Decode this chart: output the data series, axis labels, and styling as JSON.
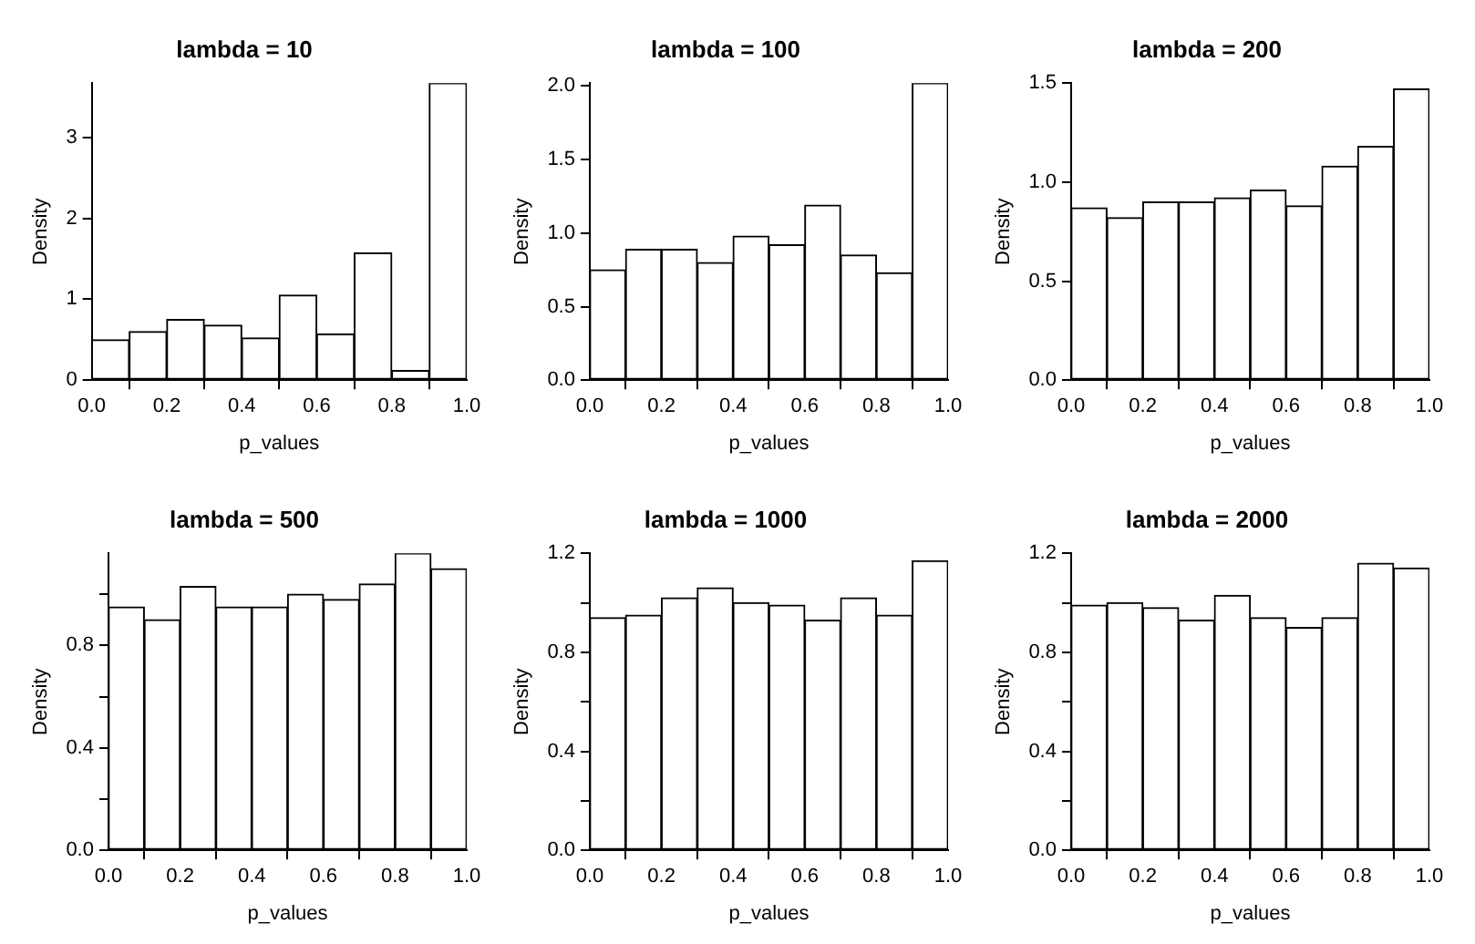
{
  "chart_data": [
    {
      "type": "histogram",
      "title": "lambda = 10",
      "xlabel": "p_values",
      "ylabel": "Density",
      "bins": [
        0,
        0.1,
        0.2,
        0.3,
        0.4,
        0.5,
        0.6,
        0.7,
        0.8,
        0.9,
        1.0
      ],
      "values": [
        0.5,
        0.6,
        0.75,
        0.68,
        0.52,
        1.05,
        0.57,
        1.57,
        0.12,
        3.67
      ],
      "color": "#ffffff",
      "xlim": [
        0,
        1
      ],
      "xticks": [
        {
          "value": 0,
          "label": "0.0"
        },
        {
          "value": 0.2,
          "label": "0.2"
        },
        {
          "value": 0.4,
          "label": "0.4"
        },
        {
          "value": 0.6,
          "label": "0.6"
        },
        {
          "value": 0.8,
          "label": "0.8"
        },
        {
          "value": 1,
          "label": "1.0"
        }
      ],
      "ylim": [
        0,
        3.67
      ],
      "yticks": [
        0,
        1,
        2,
        3
      ],
      "grid": false
    },
    {
      "type": "histogram",
      "title": "lambda = 100",
      "xlabel": "p_values",
      "ylabel": "Density",
      "bins": [
        0,
        0.1,
        0.2,
        0.3,
        0.4,
        0.5,
        0.6,
        0.7,
        0.8,
        0.9,
        1.0
      ],
      "values": [
        0.75,
        0.89,
        0.89,
        0.8,
        0.98,
        0.92,
        1.19,
        0.85,
        0.73,
        2.02
      ],
      "color": "#ffffff",
      "xlim": [
        0,
        1
      ],
      "xticks": [
        {
          "value": 0,
          "label": "0.0"
        },
        {
          "value": 0.2,
          "label": "0.2"
        },
        {
          "value": 0.4,
          "label": "0.4"
        },
        {
          "value": 0.6,
          "label": "0.6"
        },
        {
          "value": 0.8,
          "label": "0.8"
        },
        {
          "value": 1,
          "label": "1.0"
        }
      ],
      "ylim": [
        0,
        2.02
      ],
      "yticks": [
        {
          "value": 0,
          "label": "0.0"
        },
        {
          "value": 0.5,
          "label": "0.5"
        },
        {
          "value": 1,
          "label": "1.0"
        },
        {
          "value": 1.5,
          "label": "1.5"
        },
        {
          "value": 2,
          "label": "2.0"
        }
      ],
      "grid": false
    },
    {
      "type": "histogram",
      "title": "lambda = 200",
      "xlabel": "p_values",
      "ylabel": "Density",
      "bins": [
        0,
        0.1,
        0.2,
        0.3,
        0.4,
        0.5,
        0.6,
        0.7,
        0.8,
        0.9,
        1.0
      ],
      "values": [
        0.87,
        0.82,
        0.9,
        0.9,
        0.92,
        0.96,
        0.88,
        1.08,
        1.18,
        1.47
      ],
      "color": "#ffffff",
      "xlim": [
        0,
        1
      ],
      "xticks": [
        {
          "value": 0,
          "label": "0.0"
        },
        {
          "value": 0.2,
          "label": "0.2"
        },
        {
          "value": 0.4,
          "label": "0.4"
        },
        {
          "value": 0.6,
          "label": "0.6"
        },
        {
          "value": 0.8,
          "label": "0.8"
        },
        {
          "value": 1,
          "label": "1.0"
        }
      ],
      "ylim": [
        0,
        1.5
      ],
      "yticks": [
        {
          "value": 0,
          "label": "0.0"
        },
        {
          "value": 0.5,
          "label": "0.5"
        },
        {
          "value": 1,
          "label": "1.0"
        },
        {
          "value": 1.5,
          "label": "1.5"
        }
      ],
      "grid": false
    },
    {
      "type": "histogram",
      "title": "lambda = 500",
      "xlabel": "p_values",
      "ylabel": "Density",
      "bins": [
        0,
        0.1,
        0.2,
        0.3,
        0.4,
        0.5,
        0.6,
        0.7,
        0.8,
        0.9,
        1.0
      ],
      "values": [
        0.95,
        0.9,
        1.03,
        0.95,
        0.95,
        1.0,
        0.98,
        1.04,
        1.16,
        1.1
      ],
      "color": "#ffffff",
      "xlim": [
        0,
        1
      ],
      "xticks": [
        {
          "value": 0,
          "label": "0.0"
        },
        {
          "value": 0.2,
          "label": "0.2"
        },
        {
          "value": 0.4,
          "label": "0.4"
        },
        {
          "value": 0.6,
          "label": "0.6"
        },
        {
          "value": 0.8,
          "label": "0.8"
        },
        {
          "value": 1,
          "label": "1.0"
        }
      ],
      "ylim": [
        0,
        1.16
      ],
      "yticks": [
        {
          "value": 0,
          "label": "0.0"
        },
        {
          "value": 0.2,
          "label": null
        },
        {
          "value": 0.4,
          "label": "0.4"
        },
        {
          "value": 0.6,
          "label": null
        },
        {
          "value": 0.8,
          "label": "0.8"
        },
        {
          "value": 1,
          "label": null
        }
      ],
      "grid": false
    },
    {
      "type": "histogram",
      "title": "lambda = 1000",
      "xlabel": "p_values",
      "ylabel": "Density",
      "bins": [
        0,
        0.1,
        0.2,
        0.3,
        0.4,
        0.5,
        0.6,
        0.7,
        0.8,
        0.9,
        1.0
      ],
      "values": [
        0.94,
        0.95,
        1.02,
        1.06,
        1.0,
        0.99,
        0.93,
        1.02,
        0.95,
        1.17
      ],
      "color": "#ffffff",
      "xlim": [
        0,
        1
      ],
      "xticks": [
        {
          "value": 0,
          "label": "0.0"
        },
        {
          "value": 0.2,
          "label": "0.2"
        },
        {
          "value": 0.4,
          "label": "0.4"
        },
        {
          "value": 0.6,
          "label": "0.6"
        },
        {
          "value": 0.8,
          "label": "0.8"
        },
        {
          "value": 1,
          "label": "1.0"
        }
      ],
      "ylim": [
        0,
        1.2
      ],
      "yticks": [
        {
          "value": 0,
          "label": "0.0"
        },
        {
          "value": 0.2,
          "label": null
        },
        {
          "value": 0.4,
          "label": "0.4"
        },
        {
          "value": 0.6,
          "label": null
        },
        {
          "value": 0.8,
          "label": "0.8"
        },
        {
          "value": 1,
          "label": null
        },
        {
          "value": 1.2,
          "label": "1.2"
        }
      ],
      "grid": false
    },
    {
      "type": "histogram",
      "title": "lambda = 2000",
      "xlabel": "p_values",
      "ylabel": "Density",
      "bins": [
        0,
        0.1,
        0.2,
        0.3,
        0.4,
        0.5,
        0.6,
        0.7,
        0.8,
        0.9,
        1.0
      ],
      "values": [
        0.99,
        1.0,
        0.98,
        0.93,
        1.03,
        0.94,
        0.9,
        0.94,
        1.16,
        1.14
      ],
      "color": "#ffffff",
      "xlim": [
        0,
        1
      ],
      "xticks": [
        {
          "value": 0,
          "label": "0.0"
        },
        {
          "value": 0.2,
          "label": "0.2"
        },
        {
          "value": 0.4,
          "label": "0.4"
        },
        {
          "value": 0.6,
          "label": "0.6"
        },
        {
          "value": 0.8,
          "label": "0.8"
        },
        {
          "value": 1,
          "label": "1.0"
        }
      ],
      "ylim": [
        0,
        1.2
      ],
      "yticks": [
        {
          "value": 0,
          "label": "0.0"
        },
        {
          "value": 0.2,
          "label": null
        },
        {
          "value": 0.4,
          "label": "0.4"
        },
        {
          "value": 0.6,
          "label": null
        },
        {
          "value": 0.8,
          "label": "0.8"
        },
        {
          "value": 1,
          "label": null
        },
        {
          "value": 1.2,
          "label": "1.2"
        }
      ],
      "grid": false
    }
  ]
}
